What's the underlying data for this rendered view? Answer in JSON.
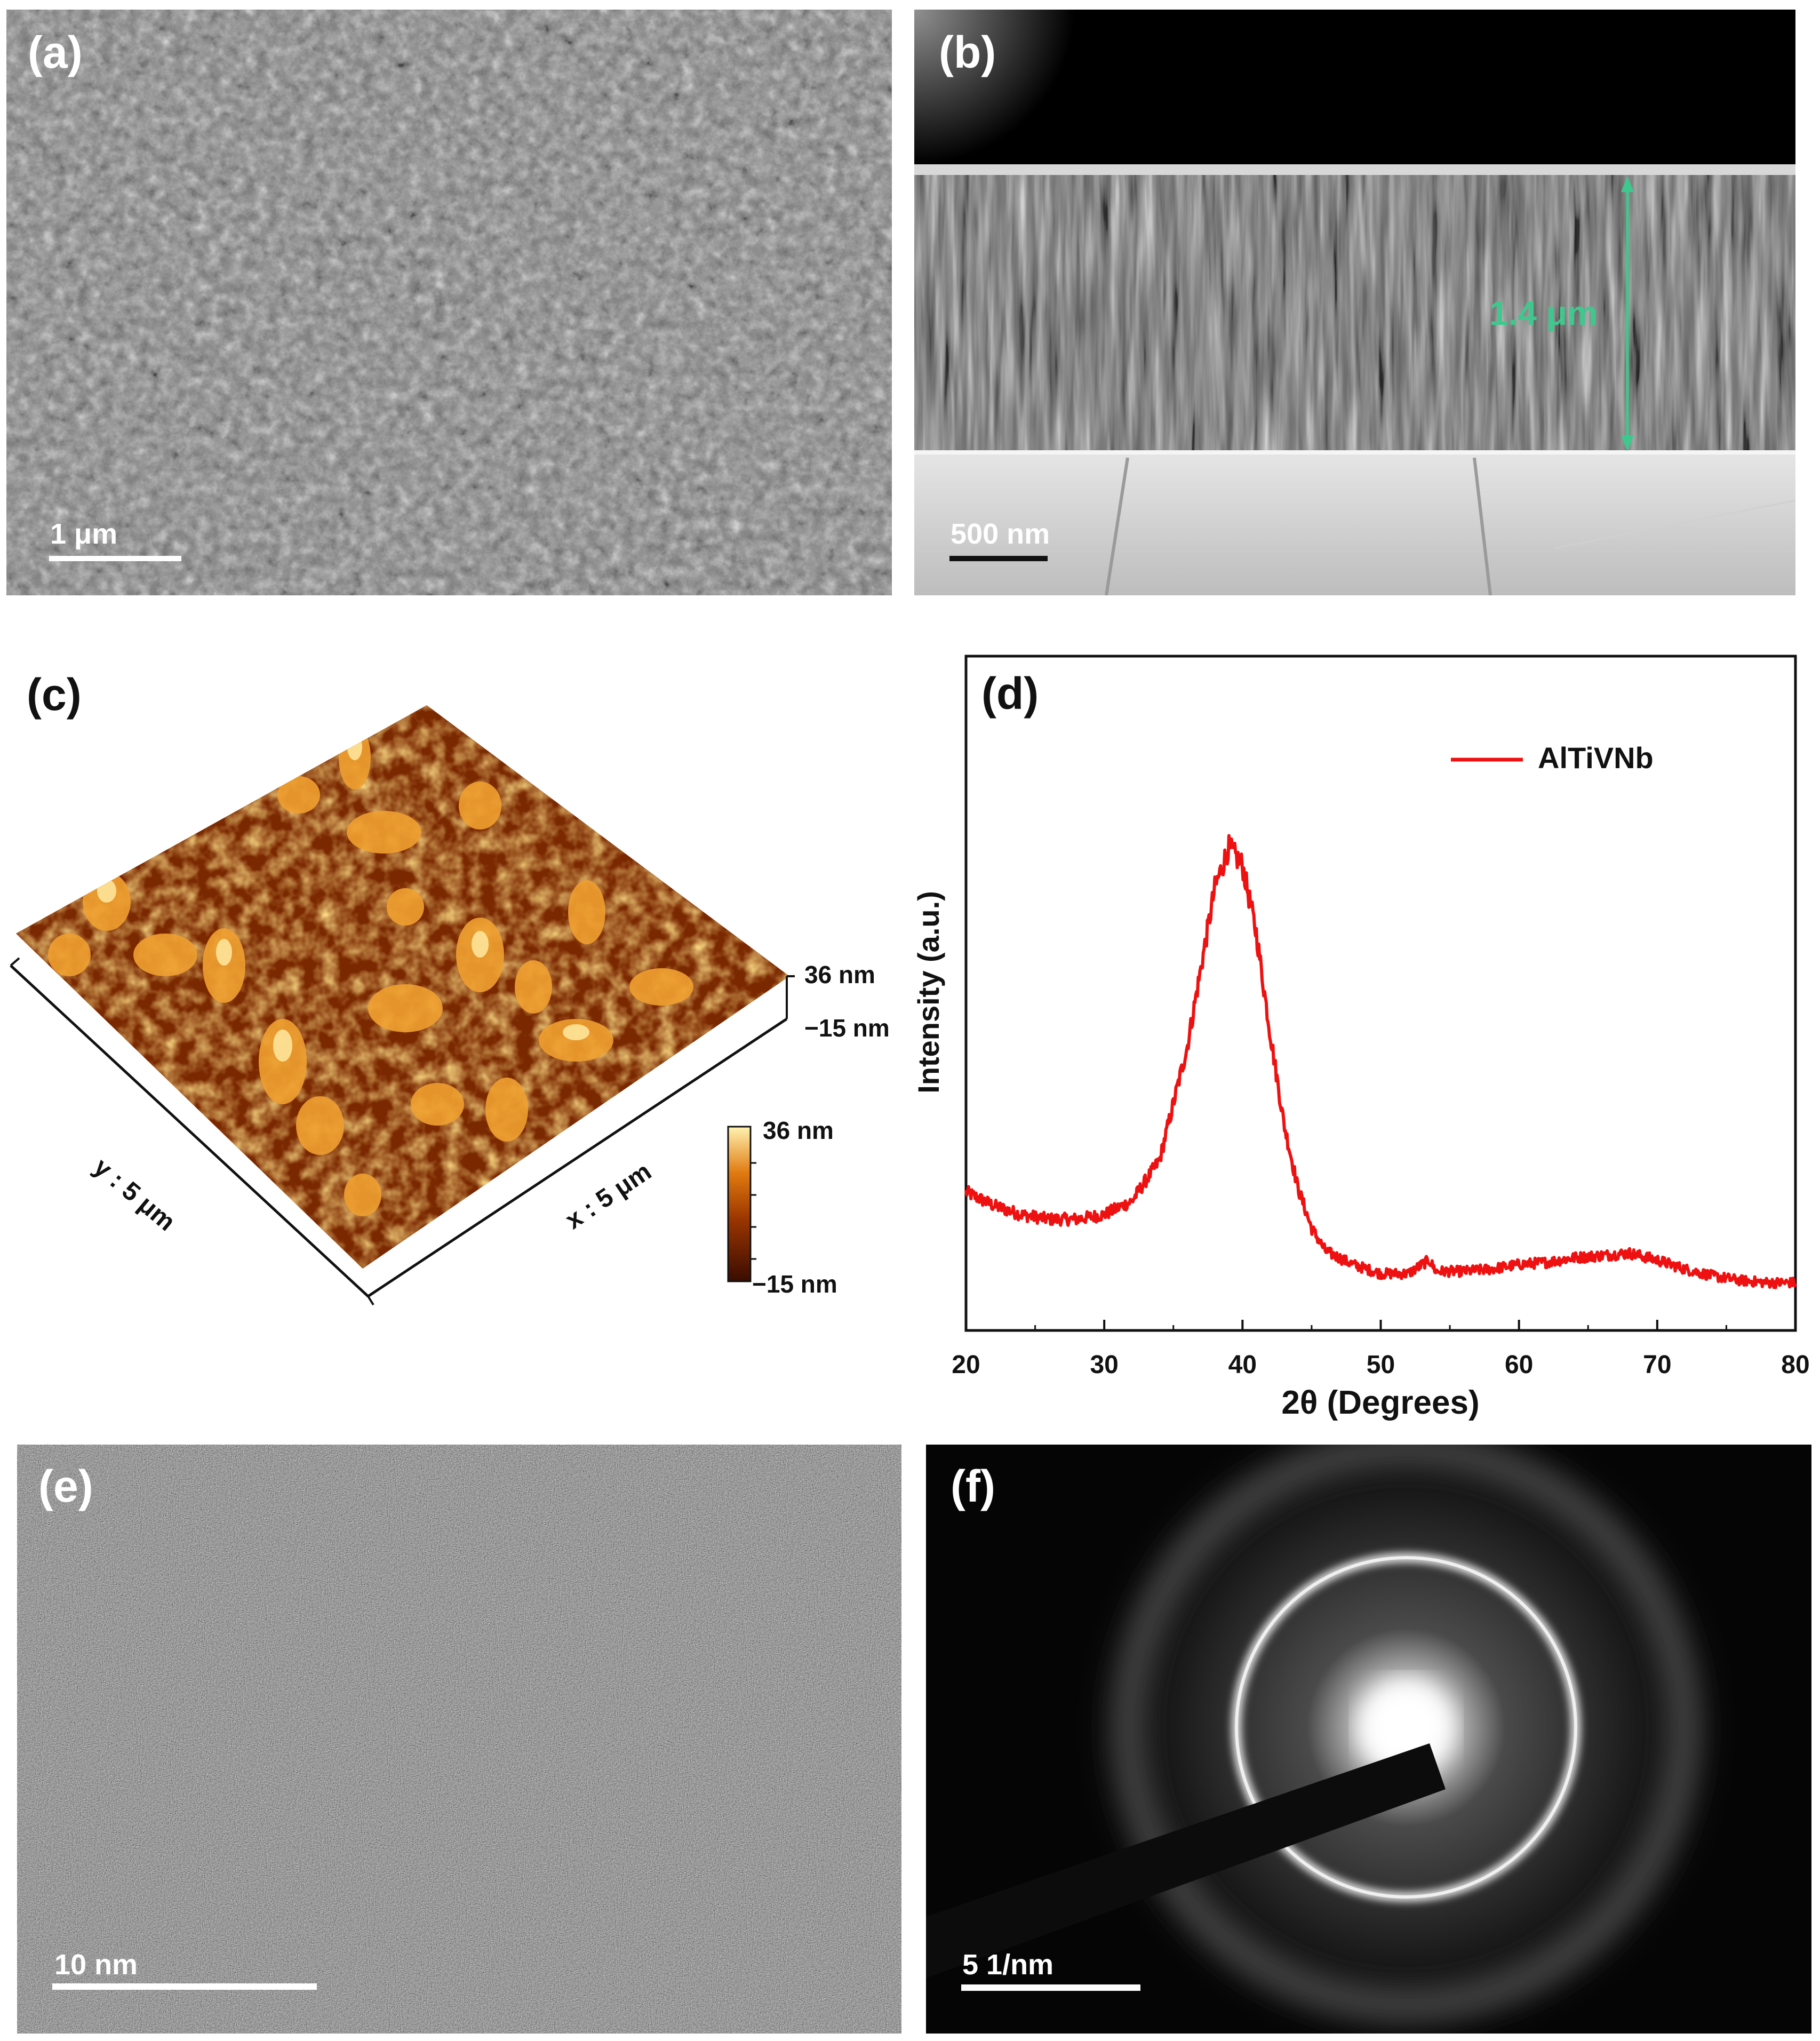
{
  "panels": {
    "a": {
      "label": "(a)",
      "scale_bar": "1 μm"
    },
    "b": {
      "label": "(b)",
      "scale_bar": "500 nm",
      "thickness_annotation": "1.4 μm",
      "annotation_color": "#3fc88e"
    },
    "c": {
      "label": "(c)",
      "x_axis": "x : 5 μm",
      "y_axis": "y : 5 μm",
      "z_max": "36 nm",
      "z_min": "−15 nm",
      "colorbar_max": "36 nm",
      "colorbar_min": "−15 nm"
    },
    "d": {
      "label": "(d)",
      "xlabel": "2θ (Degrees)",
      "ylabel": "Intensity (a.u.)",
      "legend": "AlTiVNb",
      "line_color": "#ee1111"
    },
    "e": {
      "label": "(e)",
      "scale_bar": "10 nm"
    },
    "f": {
      "label": "(f)",
      "scale_bar": "5 1/nm"
    }
  },
  "chart_data": {
    "type": "line",
    "xlabel": "2θ (Degrees)",
    "ylabel": "Intensity (a.u.)",
    "xlim": [
      20,
      80
    ],
    "x_ticks": [
      20,
      30,
      40,
      50,
      60,
      70,
      80
    ],
    "y_ticks_labeled": false,
    "legend_position": "top-right",
    "series": [
      {
        "name": "AlTiVNb",
        "color": "#ee1111",
        "points": [
          [
            20,
            0.23
          ],
          [
            22,
            0.2
          ],
          [
            24,
            0.18
          ],
          [
            26,
            0.17
          ],
          [
            28,
            0.17
          ],
          [
            30,
            0.18
          ],
          [
            32,
            0.21
          ],
          [
            34,
            0.3
          ],
          [
            36,
            0.55
          ],
          [
            38,
            0.9
          ],
          [
            39,
            0.99
          ],
          [
            40,
            0.95
          ],
          [
            41,
            0.8
          ],
          [
            42,
            0.58
          ],
          [
            43,
            0.38
          ],
          [
            44,
            0.24
          ],
          [
            45,
            0.15
          ],
          [
            46,
            0.1
          ],
          [
            48,
            0.07
          ],
          [
            50,
            0.05
          ],
          [
            52,
            0.05
          ],
          [
            53.5,
            0.08
          ],
          [
            54,
            0.055
          ],
          [
            56,
            0.055
          ],
          [
            58,
            0.06
          ],
          [
            60,
            0.07
          ],
          [
            62,
            0.075
          ],
          [
            64,
            0.085
          ],
          [
            66,
            0.09
          ],
          [
            68,
            0.095
          ],
          [
            70,
            0.08
          ],
          [
            72,
            0.06
          ],
          [
            74,
            0.045
          ],
          [
            76,
            0.035
          ],
          [
            78,
            0.03
          ],
          [
            80,
            0.03
          ]
        ]
      }
    ]
  }
}
